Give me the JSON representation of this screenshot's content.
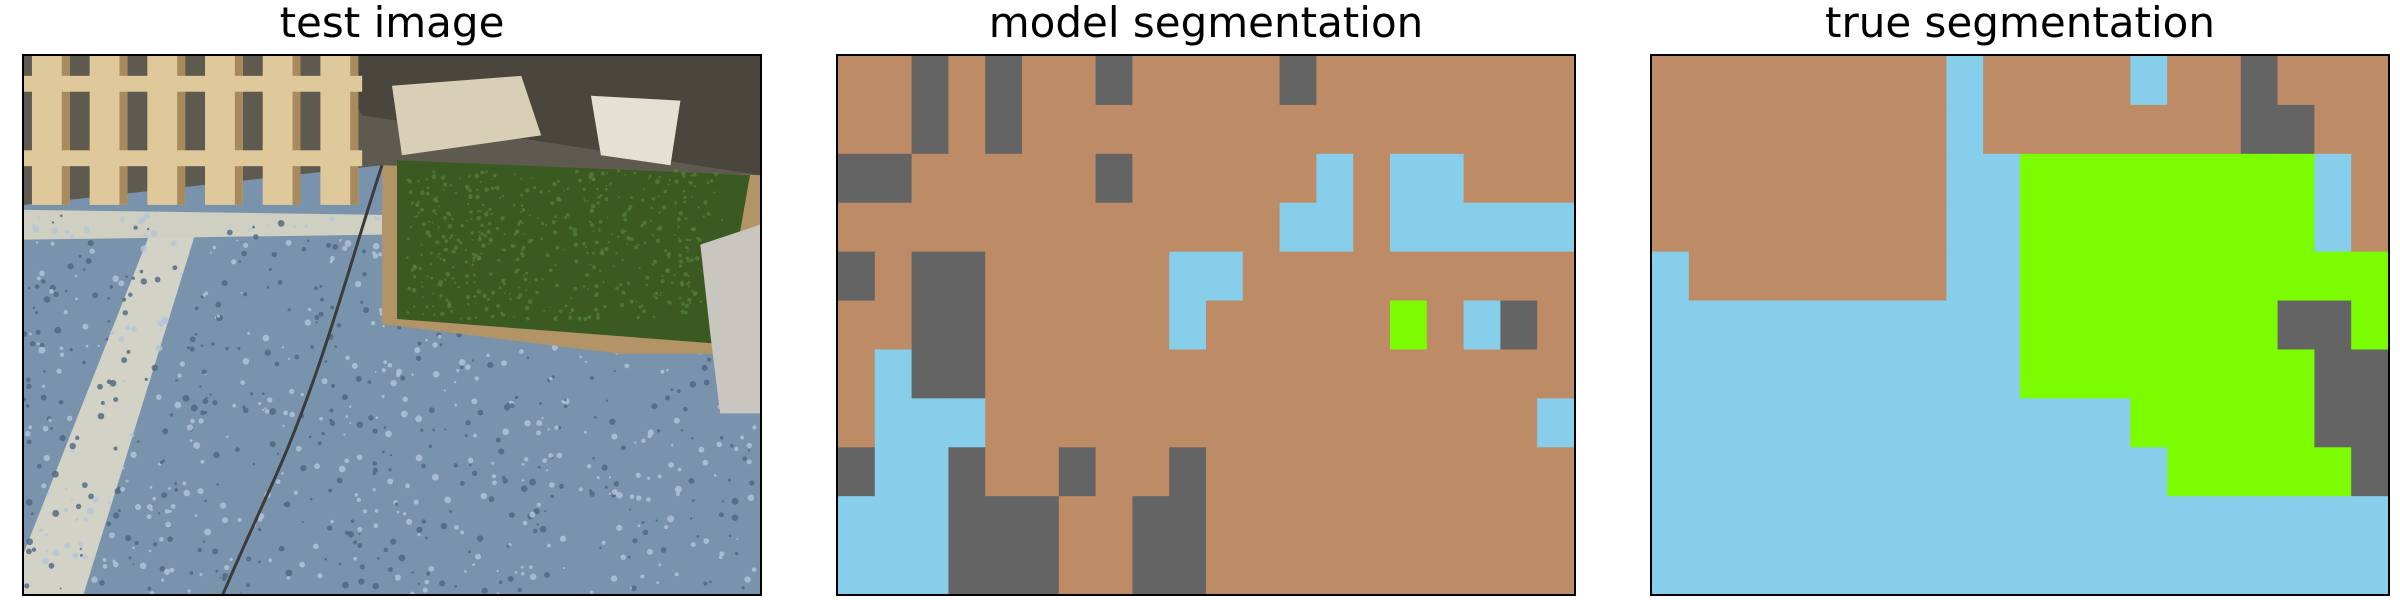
{
  "panels": [
    {
      "title": "test image"
    },
    {
      "title": "model segmentation"
    },
    {
      "title": "true segmentation"
    }
  ],
  "palette": {
    "B": "#bd8c67",
    "G": "#646464",
    "S": "#87ceeb",
    "L": "#7cfc00"
  },
  "class_names": {
    "B": "brown-region",
    "G": "gray-region",
    "S": "sky-blue-region",
    "L": "lime-green-region"
  },
  "model_segmentation": [
    "BBGBGBBGBBBBGBBBBBBB",
    "BBGBGBBBBBBBBBBBBBBB",
    "GGBBBBBGBBBBBSBSSBBB",
    "BBBBBBBBBBBBSSBSSSSS",
    "GBGGBBBBBSSBBBBBBBBB",
    "BBGGBBBBBSBBBBBLBSGB",
    "BSGGBBBBBBBBBBBBBBBB",
    "BSSSBBBBBBBBBBBBBBBS",
    "GSSGBBGBBGBBBBBBBBBB",
    "SSSGGGBBGGBBBBBBBBBB",
    "SSSGGGBBGGBBBBBBBBBB"
  ],
  "true_segmentation": [
    "BBBBBBBBSBBBBSBBGBBB",
    "BBBBBBBBSBBBBBBBGGBB",
    "BBBBBBBBSSLLLLLLLLSB",
    "BBBBBBBBSSLLLLLLLLSB",
    "SBBBBBBBSSLLLLLLLLLL",
    "SSSSSSSSSSLLLLLLLGGL",
    "SSSSSSSSSSLLLLLLLLGG",
    "SSSSSSSSSSSSSLLLLLGG",
    "SSSSSSSSSSSSSSLLLLLG",
    "SSSSSSSSSSSSSSSSSSSS",
    "SSSSSSSSSSSSSSSSSSSS"
  ],
  "photo_colors": {
    "floor": "#7a93ad",
    "floor_speck_light": "#b4c6d8",
    "floor_speck_dark": "#4c6680",
    "wood_light": "#dfc89a",
    "wood_dark": "#a88a5c",
    "wall_shadow": "#3f3a33",
    "turf": "#3a5a22",
    "turf_light": "#56803a",
    "board": "#b29467",
    "cloth": "#c9c6c0",
    "strip": "#d2d2c6"
  }
}
